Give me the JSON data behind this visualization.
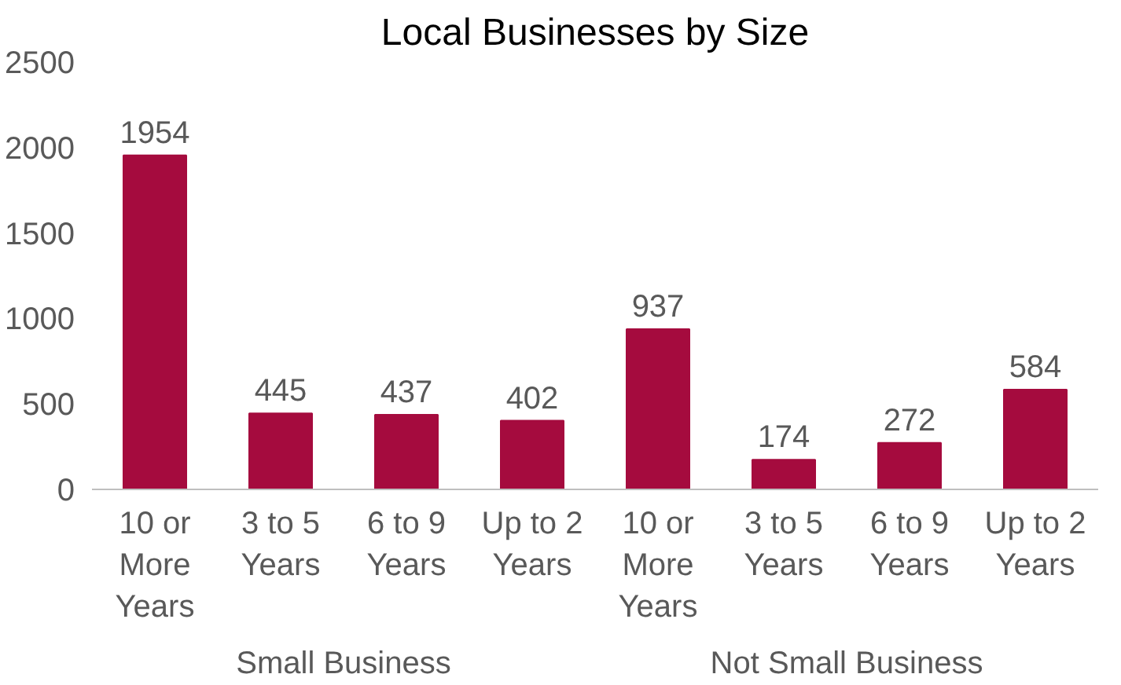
{
  "chart_data": {
    "type": "bar",
    "title": "Local Businesses by Size",
    "categories": [
      "10 or More Years",
      "3 to 5 Years",
      "6 to 9 Years",
      "Up to 2 Years",
      "10 or More Years",
      "3 to 5 Years",
      "6 to 9 Years",
      "Up to 2 Years"
    ],
    "values": [
      1954,
      445,
      437,
      402,
      937,
      174,
      272,
      584
    ],
    "color": "#a50b3e",
    "ylim": [
      0,
      2500
    ],
    "yticks": [
      0,
      500,
      1000,
      1500,
      2000,
      2500
    ],
    "data_labels": true,
    "grid": false,
    "annotations": [
      "Small Business",
      "Not Small Business"
    ]
  }
}
